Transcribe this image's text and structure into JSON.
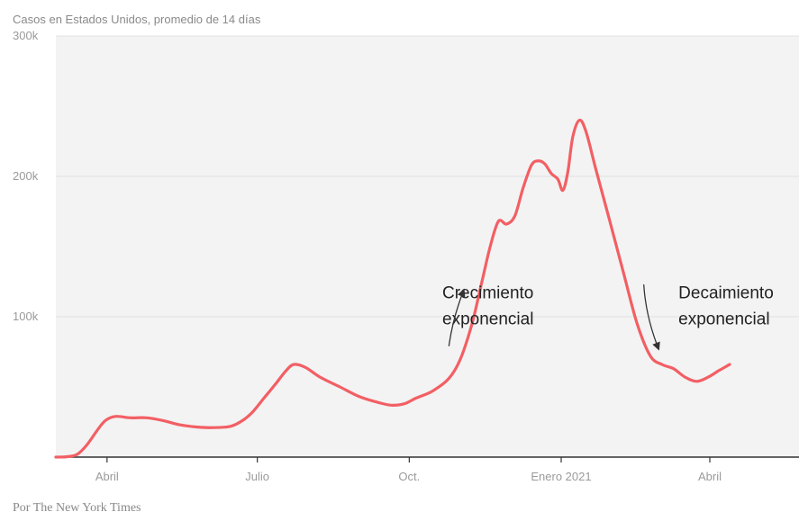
{
  "chart_data": {
    "type": "line",
    "title": "Casos en Estados Unidos, promedio de 14 días",
    "source": "Por The New York Times",
    "xlabel": "",
    "ylabel": "",
    "ylim": [
      0,
      300000
    ],
    "yticks": [
      {
        "value": 300000,
        "label": "300k"
      },
      {
        "value": 200000,
        "label": "200k"
      },
      {
        "value": 100000,
        "label": "100k"
      }
    ],
    "xticks": [
      {
        "date": "2020-04-01",
        "label": "Abril"
      },
      {
        "date": "2020-07-01",
        "label": "Julio"
      },
      {
        "date": "2020-10-01",
        "label": "Oct."
      },
      {
        "date": "2021-01-01",
        "label": "Enero 2021"
      },
      {
        "date": "2021-04-01",
        "label": "Abril"
      }
    ],
    "x_range": [
      "2020-03-01",
      "2021-05-25"
    ],
    "grid": true,
    "line_color": "#f25f64",
    "plot_background": "#f3f3f3",
    "series": [
      {
        "points": [
          [
            "2020-03-01",
            0
          ],
          [
            "2020-03-08",
            300
          ],
          [
            "2020-03-14",
            2000
          ],
          [
            "2020-03-20",
            9000
          ],
          [
            "2020-03-26",
            19000
          ],
          [
            "2020-03-31",
            26000
          ],
          [
            "2020-04-06",
            29000
          ],
          [
            "2020-04-15",
            28000
          ],
          [
            "2020-04-25",
            28000
          ],
          [
            "2020-05-05",
            26000
          ],
          [
            "2020-05-15",
            23000
          ],
          [
            "2020-05-25",
            21500
          ],
          [
            "2020-06-05",
            21000
          ],
          [
            "2020-06-15",
            22000
          ],
          [
            "2020-06-22",
            26000
          ],
          [
            "2020-06-28",
            32000
          ],
          [
            "2020-07-05",
            42000
          ],
          [
            "2020-07-12",
            52000
          ],
          [
            "2020-07-18",
            61000
          ],
          [
            "2020-07-23",
            66000
          ],
          [
            "2020-07-30",
            64000
          ],
          [
            "2020-08-08",
            57000
          ],
          [
            "2020-08-20",
            50000
          ],
          [
            "2020-09-01",
            43000
          ],
          [
            "2020-09-12",
            39000
          ],
          [
            "2020-09-20",
            37000
          ],
          [
            "2020-09-28",
            38000
          ],
          [
            "2020-10-05",
            42000
          ],
          [
            "2020-10-15",
            47000
          ],
          [
            "2020-10-25",
            56000
          ],
          [
            "2020-11-01",
            70000
          ],
          [
            "2020-11-08",
            95000
          ],
          [
            "2020-11-14",
            125000
          ],
          [
            "2020-11-19",
            150000
          ],
          [
            "2020-11-24",
            168000
          ],
          [
            "2020-11-29",
            166000
          ],
          [
            "2020-12-04",
            172000
          ],
          [
            "2020-12-09",
            192000
          ],
          [
            "2020-12-14",
            208000
          ],
          [
            "2020-12-18",
            211000
          ],
          [
            "2020-12-22",
            209000
          ],
          [
            "2020-12-26",
            202000
          ],
          [
            "2020-12-30",
            198000
          ],
          [
            "2021-01-02",
            190000
          ],
          [
            "2021-01-05",
            203000
          ],
          [
            "2021-01-08",
            228000
          ],
          [
            "2021-01-12",
            240000
          ],
          [
            "2021-01-16",
            232000
          ],
          [
            "2021-01-22",
            205000
          ],
          [
            "2021-01-30",
            170000
          ],
          [
            "2021-02-08",
            130000
          ],
          [
            "2021-02-16",
            95000
          ],
          [
            "2021-02-24",
            72000
          ],
          [
            "2021-03-03",
            66000
          ],
          [
            "2021-03-10",
            63000
          ],
          [
            "2021-03-17",
            57000
          ],
          [
            "2021-03-24",
            54000
          ],
          [
            "2021-03-31",
            57000
          ],
          [
            "2021-04-07",
            62000
          ],
          [
            "2021-04-13",
            66000
          ]
        ]
      }
    ],
    "annotations": [
      {
        "lines": [
          "Crecimiento",
          "exponencial"
        ],
        "text_anchor": {
          "date": "2020-10-21",
          "value": 113000
        },
        "arrow_from": {
          "date": "2020-10-25",
          "value": 79000
        },
        "arrow_to": {
          "date": "2020-11-03",
          "value": 119000
        }
      },
      {
        "lines": [
          "Decaimiento",
          "exponencial"
        ],
        "text_anchor": {
          "date": "2021-03-13",
          "value": 113000
        },
        "arrow_from": {
          "date": "2021-02-20",
          "value": 123000
        },
        "arrow_to": {
          "date": "2021-03-01",
          "value": 77000
        }
      }
    ]
  }
}
